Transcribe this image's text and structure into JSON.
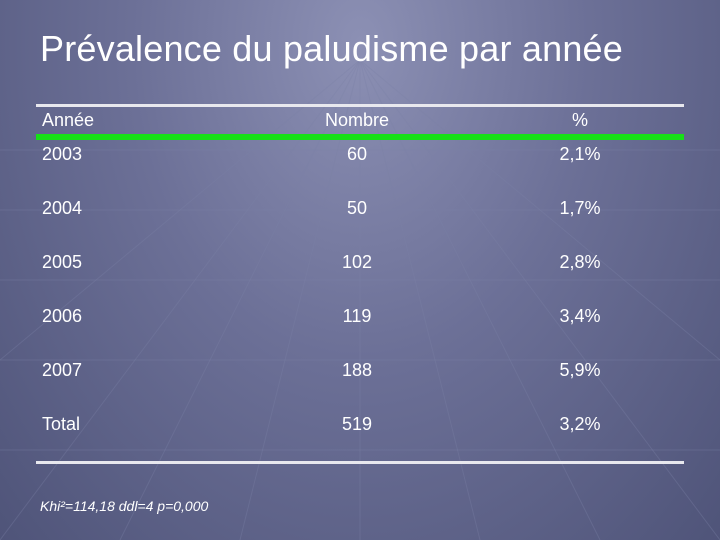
{
  "slide": {
    "title": "Prévalence du paludisme par année",
    "footnote": "Khi²=114,18 ddl=4 p=0,000"
  },
  "table": {
    "headers": [
      "Année",
      "Nombre",
      "%"
    ],
    "rows": [
      [
        "2003",
        "60",
        "2,1%"
      ],
      [
        "2004",
        "50",
        "1,7%"
      ],
      [
        "2005",
        "102",
        "2,8%"
      ],
      [
        "2006",
        "119",
        "3,4%"
      ],
      [
        "2007",
        "188",
        "5,9%"
      ],
      [
        "Total",
        "519",
        "3,2%"
      ]
    ]
  },
  "colors": {
    "background": "#54597f",
    "text": "#ffffff",
    "header_underline": "#17e017",
    "rule": "#e8e8ee"
  }
}
